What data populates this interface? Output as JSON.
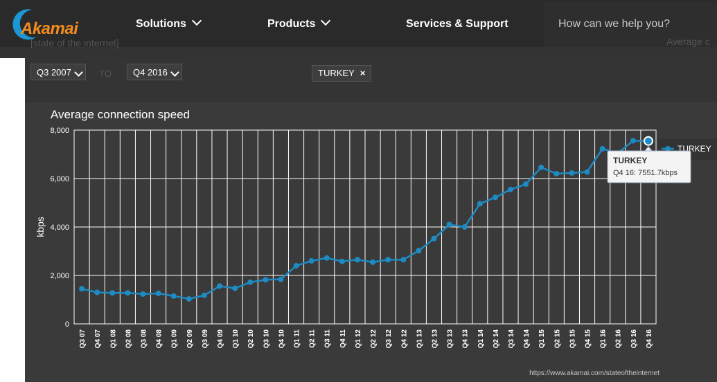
{
  "header": {
    "brand": "Akamai",
    "nav": [
      {
        "label": "Solutions",
        "has_dropdown": true
      },
      {
        "label": "Products",
        "has_dropdown": true
      },
      {
        "label": "Services & Support",
        "has_dropdown": false
      }
    ],
    "search_placeholder": "How can we help you?"
  },
  "subheader": {
    "ghost_title": "[state of the internet]",
    "ghost_right": "Average c"
  },
  "filters": {
    "from": "Q3 2007",
    "to_label": "TO",
    "to": "Q4 2016",
    "country_tag": "TURKEY"
  },
  "tooltip": {
    "country": "TURKEY",
    "detail": "Q4 16: 7551.7kbps"
  },
  "footer_url": "https://www.akamai.com/stateoftheinternet",
  "colors": {
    "series": "#1d8cc4",
    "panel": "#3a3a3a",
    "brand": "#f28c1e"
  },
  "chart_data": {
    "type": "line",
    "title": "Average connection speed",
    "ylabel": "kbps",
    "xlabel": "",
    "ylim": [
      0,
      8000
    ],
    "yticks": [
      "0",
      "2,000",
      "4,000",
      "6,000",
      "8,000"
    ],
    "grid": true,
    "legend": "right",
    "categories": [
      "Q3 07",
      "Q4 07",
      "Q1 08",
      "Q2 08",
      "Q3 08",
      "Q4 08",
      "Q1 09",
      "Q2 09",
      "Q3 09",
      "Q4 09",
      "Q1 10",
      "Q2 10",
      "Q3 10",
      "Q4 10",
      "Q1 11",
      "Q2 11",
      "Q3 11",
      "Q4 11",
      "Q1 12",
      "Q2 12",
      "Q3 12",
      "Q4 12",
      "Q1 13",
      "Q2 13",
      "Q3 13",
      "Q4 13",
      "Q1 14",
      "Q2 14",
      "Q3 14",
      "Q4 14",
      "Q1 15",
      "Q2 15",
      "Q3 15",
      "Q4 15",
      "Q1 16",
      "Q2 16",
      "Q3 16",
      "Q4 16"
    ],
    "series": [
      {
        "name": "TURKEY",
        "values": [
          1450,
          1300,
          1280,
          1280,
          1230,
          1260,
          1150,
          1030,
          1180,
          1560,
          1470,
          1720,
          1820,
          1840,
          2400,
          2600,
          2720,
          2580,
          2650,
          2550,
          2650,
          2650,
          3020,
          3520,
          4100,
          4000,
          4960,
          5220,
          5550,
          5770,
          6460,
          6200,
          6230,
          6270,
          7230,
          7040,
          7560,
          7551.7
        ]
      }
    ]
  }
}
